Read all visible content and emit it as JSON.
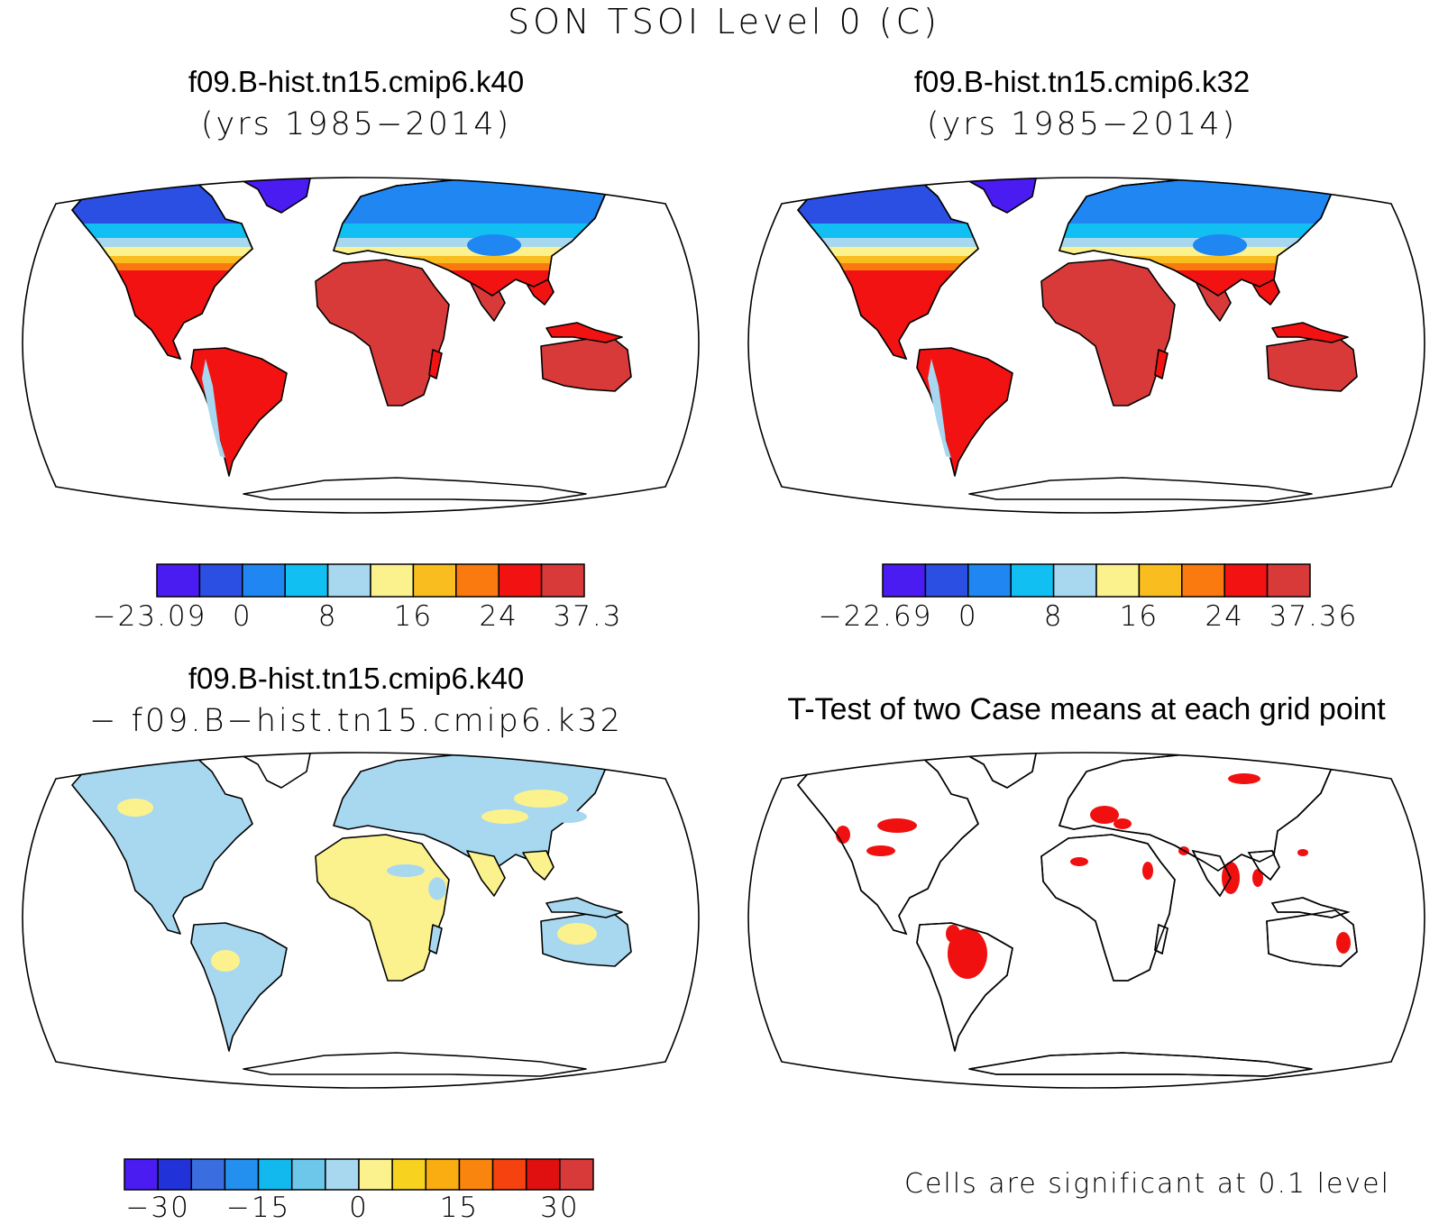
{
  "figure": {
    "title": "SON TSOI Level 0 (C)"
  },
  "panels": [
    {
      "case": "f09.B-hist.tn15.cmip6.k40",
      "subtitle": "(yrs 1985−2014)",
      "colorbar": {
        "colors": [
          "#4a1cf2",
          "#2b4fe3",
          "#1f86f2",
          "#12bff2",
          "#a7d8f0",
          "#fbf28e",
          "#f9bd1f",
          "#fa7a10",
          "#f21212",
          "#d83a3a"
        ],
        "labels": [
          "−23.09",
          "0",
          "8",
          "16",
          "24",
          "37.3"
        ]
      }
    },
    {
      "case": "f09.B-hist.tn15.cmip6.k32",
      "subtitle": "(yrs 1985−2014)",
      "colorbar": {
        "colors": [
          "#4a1cf2",
          "#2b4fe3",
          "#1f86f2",
          "#12bff2",
          "#a7d8f0",
          "#fbf28e",
          "#f9bd1f",
          "#fa7a10",
          "#f21212",
          "#d83a3a"
        ],
        "labels": [
          "−22.69",
          "0",
          "8",
          "16",
          "24",
          "37.36"
        ]
      }
    },
    {
      "case": "f09.B-hist.tn15.cmip6.k40",
      "subtitle": "− f09.B−hist.tn15.cmip6.k32",
      "colorbar": {
        "colors": [
          "#4a1cf2",
          "#2133d8",
          "#3a6ee0",
          "#2390f0",
          "#12b9ef",
          "#6cc7ea",
          "#a7d8f0",
          "#fbf28e",
          "#f7d31f",
          "#f9ad10",
          "#f9850f",
          "#f5420f",
          "#e01010",
          "#d83a3a"
        ],
        "labels": [
          "−30",
          "−15",
          "0",
          "15",
          "30"
        ]
      }
    },
    {
      "title": "T-Test of two Case means at each grid point",
      "note": "Cells are significant at 0.1 level"
    }
  ]
}
